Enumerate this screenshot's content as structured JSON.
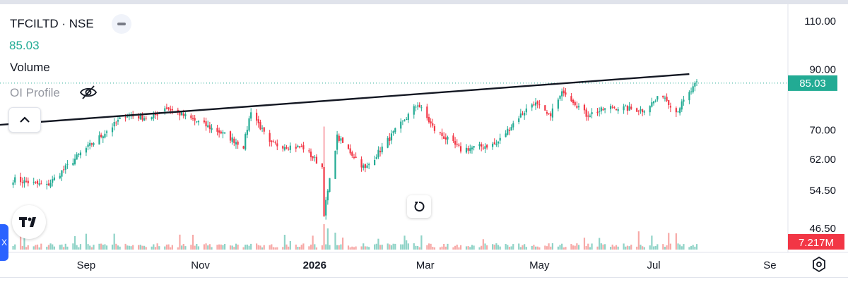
{
  "legend": {
    "symbol": "TFCILTD · NSE",
    "price": "85.03",
    "volume_label": "Volume",
    "oi_label": "OI Profile"
  },
  "icons": {
    "collapse": "minus-icon",
    "visibility": "eye-crossed-icon",
    "expand": "chevron-up-icon",
    "logo": "tradingview-logo",
    "reset": "reset-chart-icon",
    "settings": "gear-icon",
    "side_tab": "close-icon"
  },
  "colors": {
    "up": "#22ab94",
    "down": "#f23645",
    "up_volume": "#8fd3c7",
    "down_volume": "#f7a9a7",
    "last_price_badge": "#22ab94",
    "volume_badge": "#f23645",
    "trendline": "#131722"
  },
  "side_tab_text": "X",
  "chart_data": {
    "type": "candlestick",
    "scale": "log",
    "y_ticks": [
      "110.00",
      "90.00",
      "70.00",
      "62.00",
      "54.50",
      "46.50"
    ],
    "y_tick_values": [
      110,
      90,
      70,
      62,
      54.5,
      46.5
    ],
    "x_tick_labels": [
      "Sep",
      "Nov",
      "2026",
      "Mar",
      "May",
      "Jul",
      "Se"
    ],
    "last_price": 85.03,
    "last_price_label": "85.03",
    "last_volume_label": "7.217M",
    "grid": false,
    "trendline": {
      "from": {
        "date": "2025-07-17",
        "price": 71.5
      },
      "to": {
        "date": "2026-07-20",
        "price": 88.3
      }
    },
    "key_points": [
      {
        "date": "2025-07-24",
        "price": 57.0
      },
      {
        "date": "2025-08-11",
        "price": 55.5
      },
      {
        "date": "2025-08-29",
        "price": 63.5
      },
      {
        "date": "2025-09-22",
        "price": 74.5
      },
      {
        "date": "2025-10-06",
        "price": 73.5
      },
      {
        "date": "2025-10-13",
        "price": 77.0
      },
      {
        "date": "2025-11-11",
        "price": 69.5
      },
      {
        "date": "2025-11-24",
        "price": 65.5
      },
      {
        "date": "2025-11-28",
        "price": 76.0
      },
      {
        "date": "2025-12-08",
        "price": 66.0
      },
      {
        "date": "2025-12-26",
        "price": 65.0
      },
      {
        "date": "2026-01-05",
        "price": 60.0
      },
      {
        "date": "2026-01-06",
        "price": 49.5
      },
      {
        "date": "2026-01-13",
        "price": 68.0
      },
      {
        "date": "2026-01-28",
        "price": 59.5
      },
      {
        "date": "2026-02-12",
        "price": 69.0
      },
      {
        "date": "2026-02-25",
        "price": 78.0
      },
      {
        "date": "2026-03-06",
        "price": 70.0
      },
      {
        "date": "2026-03-20",
        "price": 64.5
      },
      {
        "date": "2026-04-08",
        "price": 66.0
      },
      {
        "date": "2026-04-20",
        "price": 74.0
      },
      {
        "date": "2026-04-28",
        "price": 78.5
      },
      {
        "date": "2026-05-06",
        "price": 74.0
      },
      {
        "date": "2026-05-14",
        "price": 82.5
      },
      {
        "date": "2026-05-26",
        "price": 74.5
      },
      {
        "date": "2026-06-09",
        "price": 77.0
      },
      {
        "date": "2026-06-25",
        "price": 76.0
      },
      {
        "date": "2026-07-06",
        "price": 81.0
      },
      {
        "date": "2026-07-13",
        "price": 75.5
      },
      {
        "date": "2026-07-24",
        "price": 85.0
      }
    ]
  }
}
